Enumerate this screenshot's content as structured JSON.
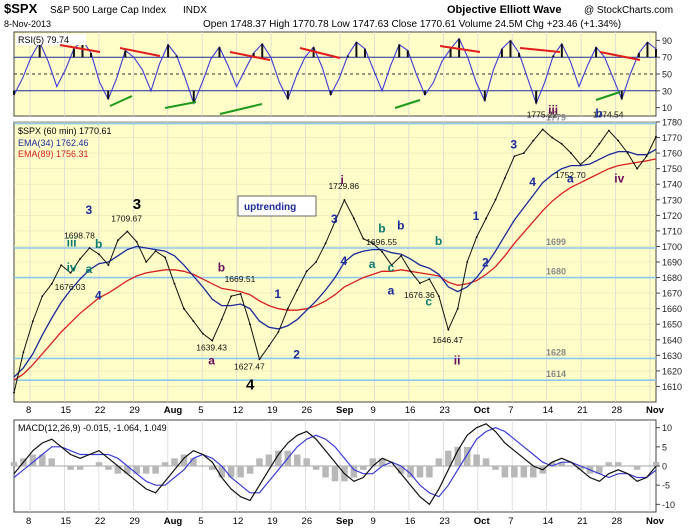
{
  "header": {
    "symbol": "$SPX",
    "name": "S&P 500 Large Cap Index",
    "exchange": "INDX",
    "source": "Objective Elliott Wave",
    "credit": "@ StockCharts.com",
    "date": "8-Nov-2013",
    "stats": "Open 1748.37  High 1770.78  Low 1747.63  Close 1770.61  Volume 24.5M  Chg +23.46 (+1.34%)"
  },
  "colors": {
    "price_bg": "#fffec8",
    "price_line": "#111111",
    "ema_fast": "#1a2a9a",
    "ema_slow": "#d62020",
    "rsi_line": "#3b3bd6",
    "hline": "#8ec8ec",
    "label_navy": "#1a2a9a",
    "label_purple": "#6a0d5a",
    "label_teal": "#0a7a70",
    "red_trend": "#e21b1b",
    "green_trend": "#1d9a1d"
  },
  "chart_data": [
    {
      "type": "line",
      "id": "rsi",
      "legend": "RSI(5) 79.74",
      "ylim": [
        0,
        100
      ],
      "yticks": [
        10,
        30,
        50,
        70,
        90
      ],
      "bands": [
        30,
        50,
        70
      ],
      "series": [
        {
          "name": "RSI(5)",
          "values": [
            25,
            45,
            70,
            88,
            65,
            35,
            55,
            80,
            90,
            75,
            40,
            20,
            45,
            78,
            70,
            55,
            30,
            62,
            85,
            72,
            45,
            15,
            40,
            68,
            82,
            60,
            35,
            55,
            75,
            86,
            70,
            40,
            20,
            48,
            70,
            82,
            58,
            25,
            45,
            72,
            88,
            80,
            55,
            30,
            60,
            85,
            78,
            50,
            25,
            40,
            65,
            80,
            92,
            70,
            40,
            18,
            55,
            80,
            90,
            75,
            45,
            15,
            40,
            72,
            86,
            65,
            35,
            60,
            82,
            70,
            45,
            20,
            50,
            75,
            88,
            79.74
          ]
        }
      ]
    },
    {
      "type": "line",
      "id": "price",
      "legend": "$SPX (60 min) 1770.61",
      "ylim": [
        1600,
        1780
      ],
      "yticks": [
        1610,
        1620,
        1630,
        1640,
        1650,
        1660,
        1670,
        1680,
        1690,
        1700,
        1710,
        1720,
        1730,
        1740,
        1750,
        1760,
        1770,
        1780
      ],
      "xticks": [
        "8",
        "15",
        "22",
        "29",
        "Aug",
        "5",
        "12",
        "19",
        "26",
        "Sep",
        "9",
        "16",
        "23",
        "Oct",
        "7",
        "14",
        "21",
        "28",
        "Nov"
      ],
      "series": [
        {
          "name": "$SPX",
          "values": [
            1606,
            1632,
            1652,
            1668,
            1676,
            1688,
            1683,
            1692,
            1699,
            1695,
            1688,
            1704,
            1709.67,
            1703,
            1690,
            1697,
            1693,
            1676,
            1660,
            1652,
            1644,
            1639.43,
            1653,
            1668,
            1669.51,
            1650,
            1627.47,
            1636,
            1645,
            1660,
            1672,
            1684,
            1690,
            1702,
            1716,
            1729.86,
            1718,
            1705,
            1702,
            1696.55,
            1688,
            1694,
            1684,
            1676.36,
            1679,
            1668,
            1646.47,
            1660,
            1690,
            1706,
            1718,
            1730,
            1744,
            1758,
            1760,
            1768,
            1775.22,
            1770,
            1766,
            1760,
            1752.7,
            1758,
            1766,
            1774.54,
            1768,
            1760,
            1750,
            1758,
            1770.61
          ]
        },
        {
          "name": "EMA(34)",
          "legend": "EMA(34) 1762.46",
          "values": [
            1616,
            1622,
            1631,
            1643,
            1654,
            1664,
            1672,
            1679,
            1685,
            1689,
            1690,
            1694,
            1698,
            1700,
            1699,
            1698,
            1697,
            1694,
            1688,
            1681,
            1674,
            1666,
            1662,
            1662,
            1663,
            1660,
            1652,
            1648,
            1647,
            1649,
            1653,
            1659,
            1665,
            1672,
            1680,
            1690,
            1695,
            1697,
            1698,
            1698,
            1696,
            1695,
            1692,
            1688,
            1686,
            1682,
            1674,
            1671,
            1674,
            1680,
            1688,
            1697,
            1707,
            1717,
            1725,
            1733,
            1741,
            1746,
            1750,
            1752,
            1752,
            1753,
            1756,
            1759,
            1761,
            1761,
            1759,
            1759,
            1762.46
          ]
        },
        {
          "name": "EMA(89)",
          "legend": "EMA(89) 1756.31",
          "values": [
            1614,
            1618,
            1624,
            1631,
            1638,
            1645,
            1651,
            1657,
            1662,
            1667,
            1670,
            1674,
            1678,
            1681,
            1683,
            1684,
            1685,
            1685,
            1684,
            1682,
            1679,
            1676,
            1673,
            1672,
            1671,
            1669,
            1665,
            1662,
            1660,
            1659,
            1659,
            1660,
            1662,
            1665,
            1669,
            1674,
            1677,
            1680,
            1682,
            1684,
            1684,
            1685,
            1684,
            1683,
            1682,
            1681,
            1677,
            1675,
            1676,
            1678,
            1682,
            1687,
            1694,
            1702,
            1709,
            1716,
            1723,
            1729,
            1734,
            1738,
            1741,
            1744,
            1747,
            1750,
            1752,
            1753,
            1754,
            1755,
            1756.31
          ]
        }
      ],
      "levels": [
        {
          "value": 1779,
          "label": "1779"
        },
        {
          "value": 1699,
          "label": "1699"
        },
        {
          "value": 1680,
          "label": "1680"
        },
        {
          "value": 1628,
          "label": "1628"
        },
        {
          "value": 1614,
          "label": "1614"
        }
      ],
      "annotations": [
        {
          "text": "1698.78",
          "i": 7,
          "y": 1705
        },
        {
          "text": "1709.67",
          "i": 12,
          "y": 1716
        },
        {
          "text": "1676.03",
          "i": 6,
          "y": 1672
        },
        {
          "text": "1669.51",
          "i": 24,
          "y": 1677
        },
        {
          "text": "1639.43",
          "i": 21,
          "y": 1633
        },
        {
          "text": "1627.47",
          "i": 25,
          "y": 1621
        },
        {
          "text": "1729.86",
          "i": 35,
          "y": 1737
        },
        {
          "text": "1696.55",
          "i": 39,
          "y": 1701
        },
        {
          "text": "1676.36",
          "i": 43,
          "y": 1667
        },
        {
          "text": "1646.47",
          "i": 46,
          "y": 1638
        },
        {
          "text": "1775.22",
          "i": 56,
          "y": 1783
        },
        {
          "text": "1774.54",
          "i": 63,
          "y": 1783
        },
        {
          "text": "1752.70",
          "i": 59,
          "y": 1744
        }
      ],
      "wave_labels": [
        {
          "text": "3",
          "i": 8,
          "y": 1721,
          "color": "label_navy"
        },
        {
          "text": "iii",
          "i": 6,
          "y": 1700,
          "color": "label_teal"
        },
        {
          "text": "b",
          "i": 9,
          "y": 1699,
          "color": "label_teal"
        },
        {
          "text": "iv",
          "i": 6,
          "y": 1684,
          "color": "label_teal"
        },
        {
          "text": "a",
          "i": 8,
          "y": 1683,
          "color": "label_teal"
        },
        {
          "text": "4",
          "i": 9,
          "y": 1666,
          "color": "label_navy"
        },
        {
          "text": "3",
          "i": 13,
          "y": 1724,
          "color": "label_black"
        },
        {
          "text": "b",
          "i": 22,
          "y": 1684,
          "color": "label_purple"
        },
        {
          "text": "a",
          "i": 21,
          "y": 1624,
          "color": "label_purple"
        },
        {
          "text": "4",
          "i": 25,
          "y": 1608,
          "color": "label_black"
        },
        {
          "text": "1",
          "i": 28,
          "y": 1667,
          "color": "label_navy"
        },
        {
          "text": "2",
          "i": 30,
          "y": 1628,
          "color": "label_navy"
        },
        {
          "text": "i",
          "i": 35,
          "y": 1740,
          "color": "label_purple"
        },
        {
          "text": "3",
          "i": 34,
          "y": 1715,
          "color": "label_navy"
        },
        {
          "text": "4",
          "i": 35,
          "y": 1688,
          "color": "label_navy"
        },
        {
          "text": "b",
          "i": 39,
          "y": 1709,
          "color": "label_teal"
        },
        {
          "text": "b",
          "i": 41,
          "y": 1711,
          "color": "label_navy"
        },
        {
          "text": "a",
          "i": 38,
          "y": 1686,
          "color": "label_teal"
        },
        {
          "text": "c",
          "i": 40,
          "y": 1684,
          "color": "label_teal"
        },
        {
          "text": "a",
          "i": 40,
          "y": 1669,
          "color": "label_navy"
        },
        {
          "text": "c",
          "i": 44,
          "y": 1662,
          "color": "label_teal"
        },
        {
          "text": "b",
          "i": 45,
          "y": 1701,
          "color": "label_teal"
        },
        {
          "text": "ii",
          "i": 47,
          "y": 1624,
          "color": "label_purple"
        },
        {
          "text": "1",
          "i": 49,
          "y": 1717,
          "color": "label_navy"
        },
        {
          "text": "2",
          "i": 50,
          "y": 1687,
          "color": "label_navy"
        },
        {
          "text": "3",
          "i": 53,
          "y": 1763,
          "color": "label_navy"
        },
        {
          "text": "4",
          "i": 55,
          "y": 1739,
          "color": "label_navy"
        },
        {
          "text": "iii",
          "i": 57,
          "y": 1785,
          "color": "label_purple"
        },
        {
          "text": "a",
          "i": 59,
          "y": 1741,
          "color": "label_navy"
        },
        {
          "text": "b",
          "i": 62,
          "y": 1783,
          "color": "label_navy"
        },
        {
          "text": "iv",
          "i": 64,
          "y": 1741,
          "color": "label_purple"
        }
      ],
      "status_box": "uptrending"
    },
    {
      "type": "line",
      "id": "macd",
      "legend": "MACD(12,26,9) -0.015, -1.064, 1.049",
      "ylim": [
        -12,
        12
      ],
      "yticks": [
        -10,
        -5,
        0,
        5,
        10
      ],
      "series": [
        {
          "name": "MACD",
          "values": [
            -2,
            1,
            4,
            6,
            7,
            5,
            3,
            2,
            3,
            4,
            2,
            0,
            -2,
            -4,
            -6,
            -7,
            -4,
            -1,
            2,
            4,
            3,
            1,
            -3,
            -6,
            -8,
            -9,
            -5,
            -1,
            3,
            6,
            8,
            9,
            7,
            4,
            1,
            -2,
            -4,
            -3,
            0,
            2,
            1,
            -2,
            -5,
            -8,
            -10,
            -6,
            -1,
            4,
            8,
            10,
            11,
            9,
            6,
            4,
            2,
            0,
            -1,
            1,
            2,
            1,
            -1,
            -3,
            -4,
            -2,
            -1,
            -2,
            -4,
            -3,
            -0.015
          ]
        },
        {
          "name": "Signal",
          "values": [
            -3,
            -1,
            1,
            3,
            5,
            5,
            4,
            3,
            3,
            3,
            3,
            2,
            0,
            -2,
            -4,
            -5,
            -5,
            -3,
            -1,
            2,
            3,
            2,
            0,
            -3,
            -5,
            -7,
            -7,
            -4,
            -1,
            2,
            5,
            7,
            8,
            7,
            5,
            2,
            -1,
            -2,
            -2,
            0,
            1,
            0,
            -2,
            -5,
            -7,
            -8,
            -5,
            -1,
            3,
            7,
            9,
            10,
            9,
            7,
            5,
            3,
            1,
            0,
            1,
            1,
            0,
            -1,
            -2,
            -3,
            -2,
            -2,
            -3,
            -3,
            -1.064
          ]
        },
        {
          "name": "Histogram",
          "values": [
            1,
            2,
            3,
            3,
            2,
            0,
            -1,
            -1,
            0,
            1,
            -1,
            -2,
            -2,
            -2,
            -2,
            -2,
            1,
            2,
            3,
            2,
            0,
            -1,
            -3,
            -3,
            -3,
            -2,
            2,
            3,
            4,
            4,
            3,
            2,
            -1,
            -3,
            -4,
            -4,
            -3,
            -1,
            2,
            2,
            0,
            -2,
            -3,
            -3,
            -3,
            2,
            4,
            5,
            5,
            3,
            2,
            -1,
            -3,
            -3,
            -3,
            -3,
            -2,
            1,
            1,
            0,
            -1,
            -2,
            -2,
            1,
            1,
            0,
            -1,
            0,
            1.049
          ]
        }
      ]
    }
  ]
}
